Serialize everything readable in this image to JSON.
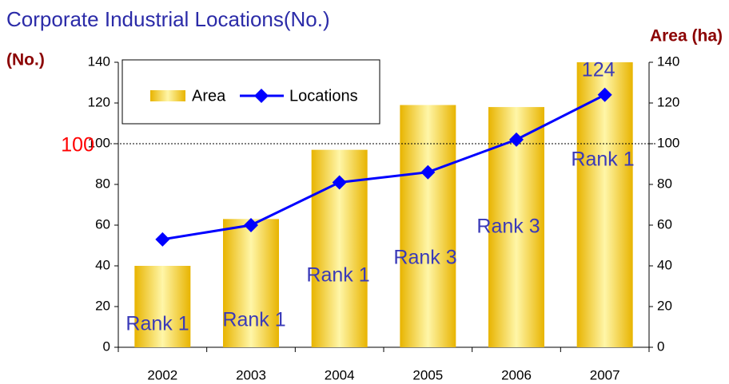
{
  "chart_data": {
    "type": "bar",
    "title": "Corporate Industrial Locations(No.)",
    "y_label": "(No.)",
    "y2_label": "Area (ha)",
    "categories": [
      "2002",
      "2003",
      "2004",
      "2005",
      "2006",
      "2007"
    ],
    "series": [
      {
        "name": "Area",
        "type": "bar",
        "axis": "y2",
        "color": "#f0c000",
        "values": [
          40,
          63,
          97,
          119,
          118,
          140
        ]
      },
      {
        "name": "Locations",
        "type": "line",
        "axis": "y",
        "color": "#0000ff",
        "values": [
          53,
          60,
          81,
          86,
          102,
          124
        ]
      }
    ],
    "rank_labels": [
      "Rank 1",
      "Rank 1",
      "Rank 1",
      "Rank 3",
      "Rank 3",
      "Rank 1"
    ],
    "reference_line": {
      "value": 100,
      "color": "#ff0000"
    },
    "ylim": [
      0,
      140
    ],
    "yticks": [
      0,
      20,
      40,
      60,
      80,
      100,
      120,
      140
    ],
    "y2lim": [
      0,
      140
    ],
    "y2ticks": [
      0,
      20,
      40,
      60,
      80,
      100,
      120,
      140
    ],
    "grid": false,
    "legend": "upper left"
  }
}
